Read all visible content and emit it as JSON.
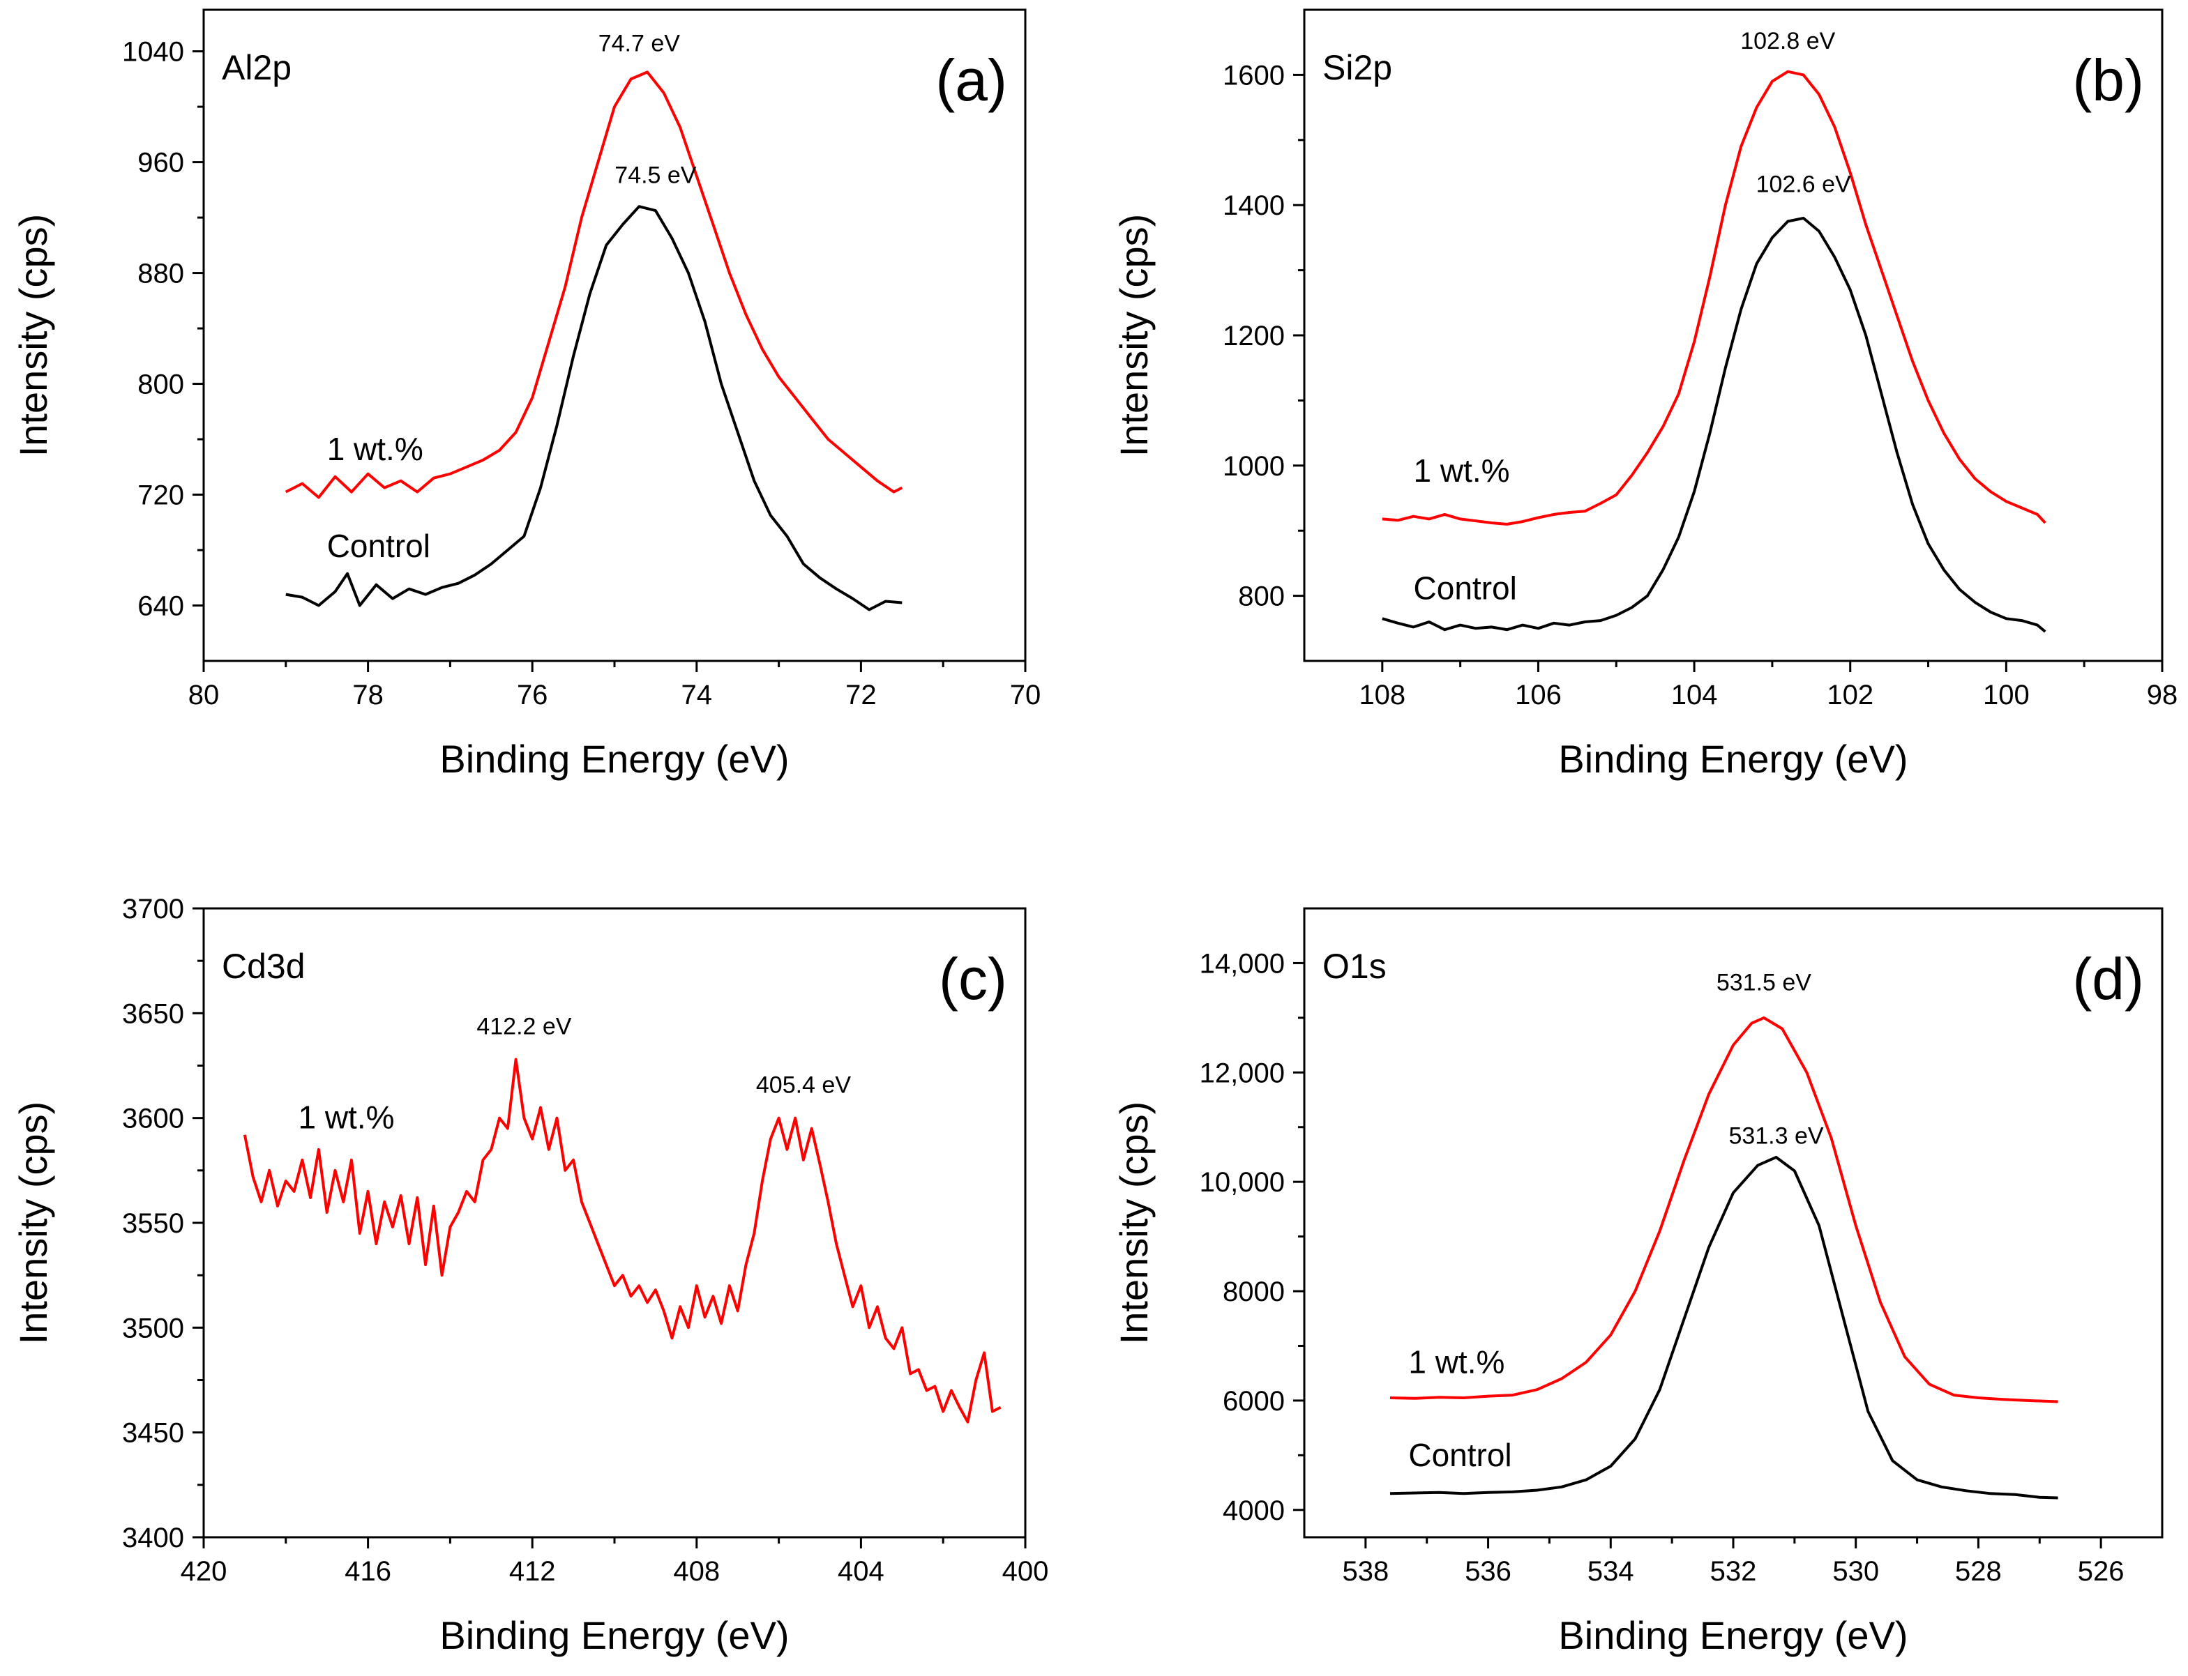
{
  "colors": {
    "control": "#000000",
    "doped": "#ff0000",
    "axis": "#000000"
  },
  "chart_data": [
    {
      "type": "line",
      "panel_label": "(a)",
      "element": "Al2p",
      "xlabel": "Binding Energy (eV)",
      "ylabel": "Intensity (cps)",
      "xlim": [
        80,
        70
      ],
      "ylim": [
        600,
        1070
      ],
      "xticks": [
        80,
        78,
        76,
        74,
        72,
        70
      ],
      "yticks": [
        640,
        720,
        800,
        880,
        960,
        1040
      ],
      "ytick_labels": [
        "640",
        "720",
        "800",
        "880",
        "960",
        "1040"
      ],
      "series": [
        {
          "name": "Control",
          "color": "#000000",
          "x": [
            79.0,
            78.8,
            78.6,
            78.4,
            78.25,
            78.1,
            77.9,
            77.7,
            77.5,
            77.3,
            77.1,
            76.9,
            76.7,
            76.5,
            76.3,
            76.1,
            75.9,
            75.7,
            75.5,
            75.3,
            75.1,
            74.9,
            74.7,
            74.5,
            74.3,
            74.1,
            73.9,
            73.7,
            73.5,
            73.3,
            73.1,
            72.9,
            72.7,
            72.5,
            72.3,
            72.1,
            71.9,
            71.7,
            71.5
          ],
          "values": [
            648,
            646,
            640,
            650,
            663,
            640,
            655,
            645,
            652,
            648,
            653,
            656,
            662,
            670,
            680,
            690,
            725,
            770,
            820,
            865,
            900,
            915,
            928,
            925,
            905,
            880,
            845,
            800,
            765,
            730,
            705,
            690,
            670,
            660,
            652,
            645,
            637,
            643,
            642
          ]
        },
        {
          "name": "1 wt.%",
          "color": "#ff0000",
          "x": [
            79.0,
            78.8,
            78.6,
            78.4,
            78.2,
            78.0,
            77.8,
            77.6,
            77.4,
            77.2,
            77.0,
            76.8,
            76.6,
            76.4,
            76.2,
            76.0,
            75.8,
            75.6,
            75.4,
            75.2,
            75.0,
            74.8,
            74.6,
            74.4,
            74.2,
            74.0,
            73.8,
            73.6,
            73.4,
            73.2,
            73.0,
            72.8,
            72.6,
            72.4,
            72.2,
            72.0,
            71.8,
            71.6,
            71.5
          ],
          "values": [
            722,
            728,
            718,
            733,
            722,
            735,
            725,
            730,
            722,
            732,
            735,
            740,
            745,
            752,
            765,
            790,
            830,
            870,
            920,
            960,
            1000,
            1020,
            1025,
            1010,
            985,
            950,
            915,
            880,
            850,
            825,
            805,
            790,
            775,
            760,
            750,
            740,
            730,
            722,
            725
          ]
        }
      ],
      "annotations": [
        {
          "text": "74.7 eV",
          "x": 74.7,
          "y": 1040
        },
        {
          "text": "74.5 eV",
          "x": 74.5,
          "y": 945
        },
        {
          "text": "1 wt.%",
          "x": 78.5,
          "y": 745
        },
        {
          "text": "Control",
          "x": 78.5,
          "y": 675
        }
      ]
    },
    {
      "type": "line",
      "panel_label": "(b)",
      "element": "Si2p",
      "xlabel": "Binding Energy (eV)",
      "ylabel": "Intensity (cps)",
      "xlim": [
        109,
        98
      ],
      "ylim": [
        700,
        1700
      ],
      "xticks": [
        108,
        106,
        104,
        102,
        100,
        98
      ],
      "yticks": [
        800,
        1000,
        1200,
        1400,
        1600
      ],
      "ytick_labels": [
        "800",
        "1000",
        "1200",
        "1400",
        "1600"
      ],
      "series": [
        {
          "name": "Control",
          "color": "#000000",
          "x": [
            108.0,
            107.8,
            107.6,
            107.4,
            107.2,
            107.0,
            106.8,
            106.6,
            106.4,
            106.2,
            106.0,
            105.8,
            105.6,
            105.4,
            105.2,
            105.0,
            104.8,
            104.6,
            104.4,
            104.2,
            104.0,
            103.8,
            103.6,
            103.4,
            103.2,
            103.0,
            102.8,
            102.6,
            102.4,
            102.2,
            102.0,
            101.8,
            101.6,
            101.4,
            101.2,
            101.0,
            100.8,
            100.6,
            100.4,
            100.2,
            100.0,
            99.8,
            99.6,
            99.5
          ],
          "values": [
            765,
            758,
            752,
            760,
            748,
            755,
            750,
            752,
            748,
            755,
            750,
            758,
            755,
            760,
            762,
            770,
            782,
            800,
            840,
            890,
            960,
            1050,
            1150,
            1240,
            1310,
            1350,
            1375,
            1380,
            1360,
            1320,
            1270,
            1200,
            1110,
            1020,
            940,
            880,
            840,
            810,
            790,
            775,
            765,
            762,
            755,
            745
          ]
        },
        {
          "name": "1 wt.%",
          "color": "#ff0000",
          "x": [
            108.0,
            107.8,
            107.6,
            107.4,
            107.2,
            107.0,
            106.8,
            106.6,
            106.4,
            106.2,
            106.0,
            105.8,
            105.6,
            105.4,
            105.2,
            105.0,
            104.8,
            104.6,
            104.4,
            104.2,
            104.0,
            103.8,
            103.6,
            103.4,
            103.2,
            103.0,
            102.8,
            102.6,
            102.4,
            102.2,
            102.0,
            101.8,
            101.6,
            101.4,
            101.2,
            101.0,
            100.8,
            100.6,
            100.4,
            100.2,
            100.0,
            99.8,
            99.6,
            99.5
          ],
          "values": [
            918,
            916,
            922,
            918,
            925,
            918,
            915,
            912,
            910,
            914,
            920,
            925,
            928,
            930,
            942,
            955,
            985,
            1020,
            1060,
            1110,
            1190,
            1290,
            1400,
            1490,
            1550,
            1590,
            1605,
            1600,
            1570,
            1520,
            1450,
            1370,
            1300,
            1230,
            1160,
            1100,
            1050,
            1010,
            980,
            960,
            945,
            935,
            925,
            912
          ]
        }
      ],
      "annotations": [
        {
          "text": "102.8 eV",
          "x": 102.8,
          "y": 1640
        },
        {
          "text": "102.6 eV",
          "x": 102.6,
          "y": 1420
        },
        {
          "text": "1 wt.%",
          "x": 107.6,
          "y": 975
        },
        {
          "text": "Control",
          "x": 107.6,
          "y": 795
        }
      ]
    },
    {
      "type": "line",
      "panel_label": "(c)",
      "element": "Cd3d",
      "xlabel": "Binding Energy (eV)",
      "ylabel": "Intensity (cps)",
      "xlim": [
        420,
        400
      ],
      "ylim": [
        3400,
        3700
      ],
      "xticks": [
        420,
        416,
        412,
        408,
        404,
        400
      ],
      "yticks": [
        3400,
        3450,
        3500,
        3550,
        3600,
        3650,
        3700
      ],
      "ytick_labels": [
        "3400",
        "3450",
        "3500",
        "3550",
        "3600",
        "3650",
        "3700"
      ],
      "series": [
        {
          "name": "1 wt.%",
          "color": "#ff0000",
          "x": [
            419.0,
            418.8,
            418.6,
            418.4,
            418.2,
            418.0,
            417.8,
            417.6,
            417.4,
            417.2,
            417.0,
            416.8,
            416.6,
            416.4,
            416.2,
            416.0,
            415.8,
            415.6,
            415.4,
            415.2,
            415.0,
            414.8,
            414.6,
            414.4,
            414.2,
            414.0,
            413.8,
            413.6,
            413.4,
            413.2,
            413.0,
            412.8,
            412.6,
            412.4,
            412.2,
            412.0,
            411.8,
            411.6,
            411.4,
            411.2,
            411.0,
            410.8,
            410.6,
            410.4,
            410.2,
            410.0,
            409.8,
            409.6,
            409.4,
            409.2,
            409.0,
            408.8,
            408.6,
            408.4,
            408.2,
            408.0,
            407.8,
            407.6,
            407.4,
            407.2,
            407.0,
            406.8,
            406.6,
            406.4,
            406.2,
            406.0,
            405.8,
            405.6,
            405.4,
            405.2,
            405.0,
            404.8,
            404.6,
            404.4,
            404.2,
            404.0,
            403.8,
            403.6,
            403.4,
            403.2,
            403.0,
            402.8,
            402.6,
            402.4,
            402.2,
            402.0,
            401.8,
            401.6,
            401.4,
            401.2,
            401.0,
            400.8,
            400.6
          ],
          "values": [
            3592,
            3572,
            3560,
            3575,
            3558,
            3570,
            3565,
            3580,
            3562,
            3585,
            3555,
            3575,
            3560,
            3580,
            3545,
            3565,
            3540,
            3560,
            3548,
            3563,
            3540,
            3562,
            3530,
            3558,
            3525,
            3548,
            3555,
            3565,
            3560,
            3580,
            3585,
            3600,
            3595,
            3628,
            3600,
            3590,
            3605,
            3585,
            3600,
            3575,
            3580,
            3560,
            3550,
            3540,
            3530,
            3520,
            3525,
            3515,
            3520,
            3512,
            3518,
            3508,
            3495,
            3510,
            3500,
            3520,
            3505,
            3515,
            3502,
            3520,
            3508,
            3530,
            3545,
            3570,
            3590,
            3600,
            3585,
            3600,
            3580,
            3595,
            3578,
            3560,
            3540,
            3525,
            3510,
            3520,
            3500,
            3510,
            3495,
            3490,
            3500,
            3478,
            3480,
            3470,
            3472,
            3460,
            3470,
            3462,
            3455,
            3475,
            3488,
            3460,
            3462
          ]
        }
      ],
      "annotations": [
        {
          "text": "412.2 eV",
          "x": 412.2,
          "y": 3640
        },
        {
          "text": "405.4 eV",
          "x": 405.4,
          "y": 3612
        },
        {
          "text": "1 wt.%",
          "x": 417.7,
          "y": 3595
        }
      ]
    },
    {
      "type": "line",
      "panel_label": "(d)",
      "element": "O1s",
      "xlabel": "Binding Energy (eV)",
      "ylabel": "Intensity (cps)",
      "xlim": [
        539,
        525
      ],
      "ylim": [
        3500,
        15000
      ],
      "xticks": [
        538,
        536,
        534,
        532,
        530,
        528,
        526
      ],
      "yticks": [
        4000,
        6000,
        8000,
        10000,
        12000,
        14000
      ],
      "ytick_labels": [
        "4000",
        "6000",
        "8000",
        "10,000",
        "12,000",
        "14,000"
      ],
      "series": [
        {
          "name": "Control",
          "color": "#000000",
          "x": [
            537.6,
            537.2,
            536.8,
            536.4,
            536.0,
            535.6,
            535.2,
            534.8,
            534.4,
            534.0,
            533.6,
            533.2,
            532.8,
            532.4,
            532.0,
            531.6,
            531.3,
            531.0,
            530.6,
            530.2,
            529.8,
            529.4,
            529.0,
            528.6,
            528.2,
            527.8,
            527.4,
            527.0,
            526.7
          ],
          "values": [
            4300,
            4310,
            4320,
            4300,
            4320,
            4330,
            4360,
            4420,
            4550,
            4800,
            5300,
            6200,
            7500,
            8800,
            9800,
            10300,
            10450,
            10200,
            9200,
            7500,
            5800,
            4900,
            4550,
            4420,
            4350,
            4300,
            4280,
            4230,
            4220
          ]
        },
        {
          "name": "1 wt.%",
          "color": "#ff0000",
          "x": [
            537.6,
            537.2,
            536.8,
            536.4,
            536.0,
            535.6,
            535.2,
            534.8,
            534.4,
            534.0,
            533.6,
            533.2,
            532.8,
            532.4,
            532.0,
            531.7,
            531.5,
            531.2,
            530.8,
            530.4,
            530.0,
            529.6,
            529.2,
            528.8,
            528.4,
            528.0,
            527.6,
            527.2,
            526.7
          ],
          "values": [
            6050,
            6040,
            6060,
            6050,
            6080,
            6100,
            6200,
            6400,
            6700,
            7200,
            8000,
            9100,
            10400,
            11600,
            12500,
            12900,
            13000,
            12800,
            12000,
            10800,
            9200,
            7800,
            6800,
            6300,
            6100,
            6050,
            6020,
            6000,
            5980
          ]
        }
      ],
      "annotations": [
        {
          "text": "531.5 eV",
          "x": 531.5,
          "y": 13500
        },
        {
          "text": "531.3 eV",
          "x": 531.3,
          "y": 10700
        },
        {
          "text": "1 wt.%",
          "x": 537.3,
          "y": 6500
        },
        {
          "text": "Control",
          "x": 537.3,
          "y": 4800
        }
      ]
    }
  ]
}
